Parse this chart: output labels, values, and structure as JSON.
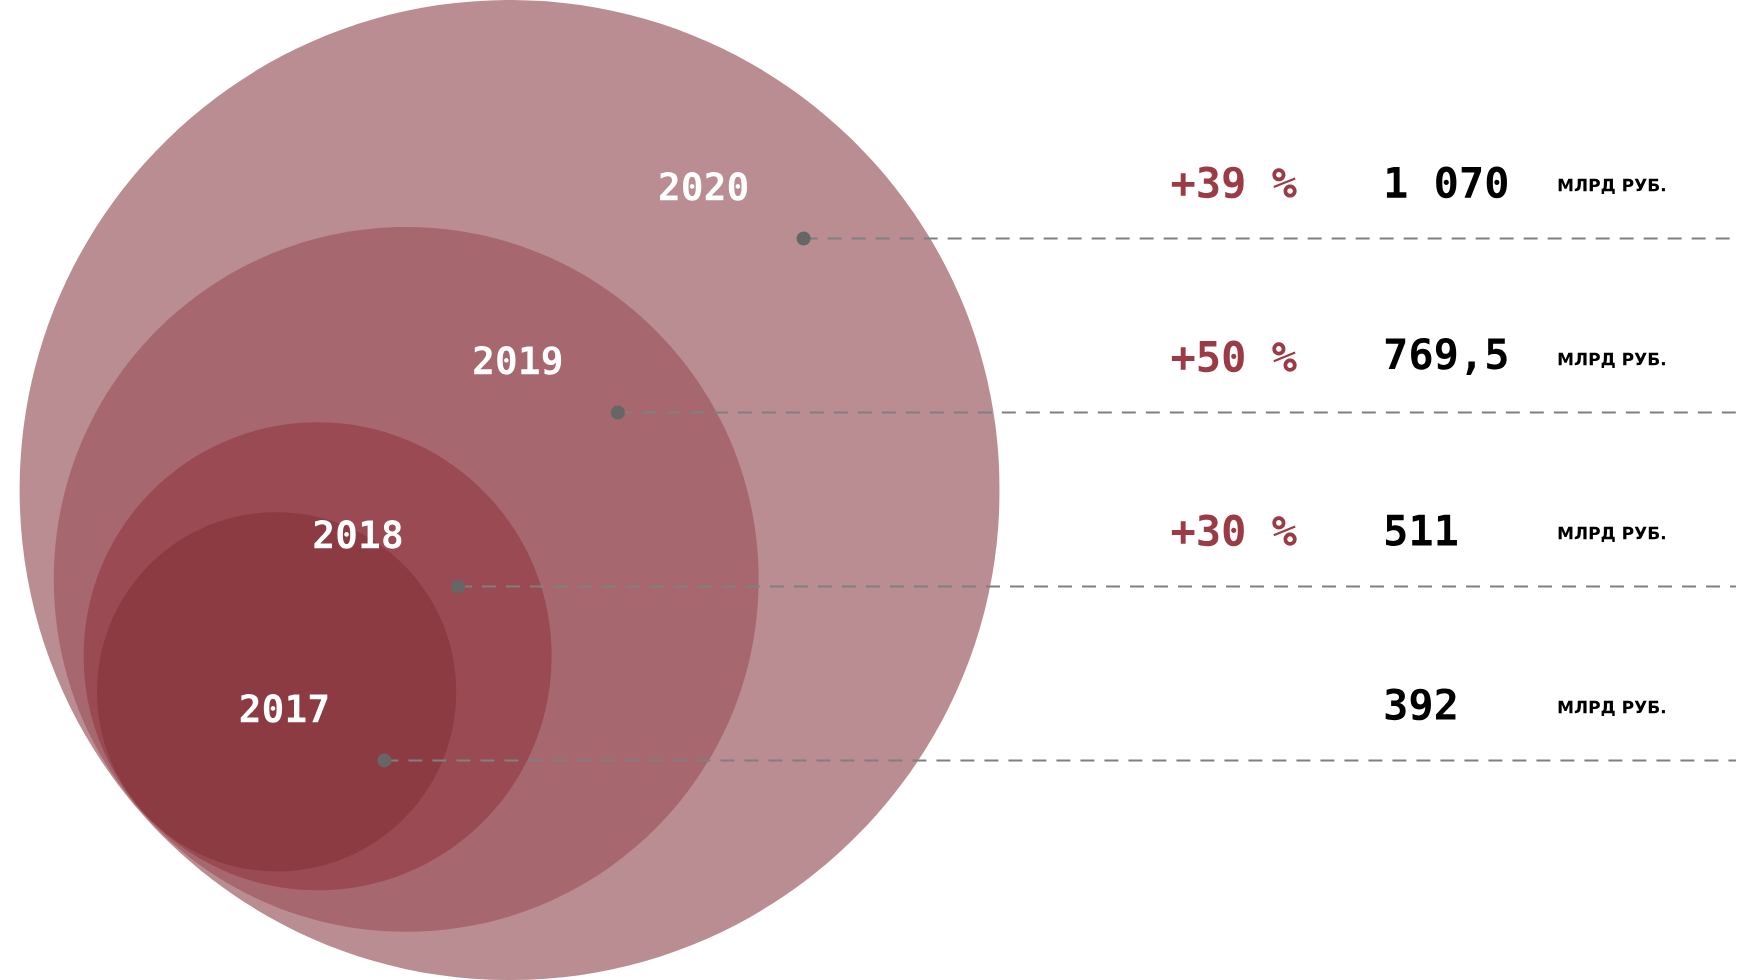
{
  "chart_data": {
    "type": "other",
    "categories": [
      "2017",
      "2018",
      "2019",
      "2020"
    ],
    "values": [
      392,
      511,
      769.5,
      1070
    ],
    "value_labels": [
      "392",
      "511",
      "769,5",
      "1 070"
    ],
    "colors": [
      "#8c3b43",
      "#9a4a52",
      "#a7676e",
      "#b98d92"
    ],
    "ylabel": "МЛРД РУБ.",
    "annotations": [
      "+30 %",
      "+50 %",
      "+39 %"
    ]
  }
}
